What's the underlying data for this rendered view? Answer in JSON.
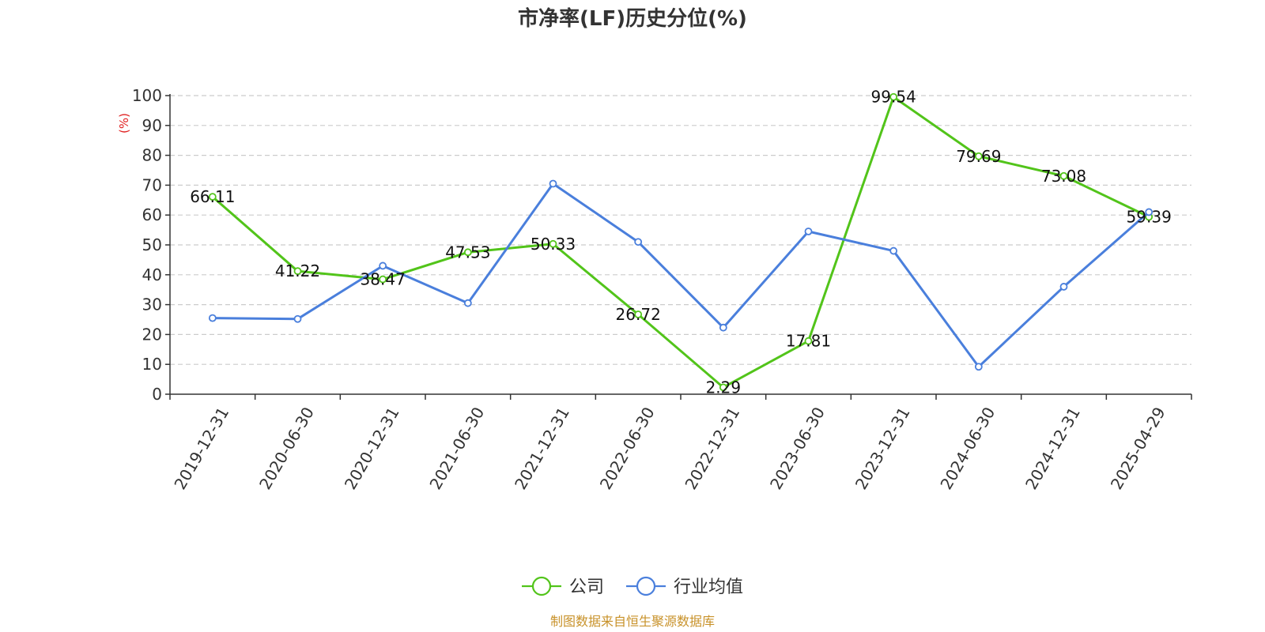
{
  "chart_data": {
    "type": "line",
    "title": "市净率(LF)历史分位(%)",
    "ylabel": "(%)",
    "ylim": [
      0,
      100
    ],
    "yticks": [
      "0",
      "10",
      "20",
      "30",
      "40",
      "50",
      "60",
      "70",
      "80",
      "90",
      "100"
    ],
    "categories": [
      "2019-12-31",
      "2020-06-30",
      "2020-12-31",
      "2021-06-30",
      "2021-12-31",
      "2022-06-30",
      "2022-12-31",
      "2023-06-30",
      "2023-12-31",
      "2024-06-30",
      "2024-12-31",
      "2025-04-29"
    ],
    "grid": true,
    "legend_position": "bottom-center",
    "series": [
      {
        "name": "公司",
        "color": "#52c41a",
        "values": [
          66.11,
          41.22,
          38.47,
          47.53,
          50.33,
          26.72,
          2.29,
          17.81,
          99.54,
          79.69,
          73.08,
          59.39
        ],
        "labels": [
          "66.11",
          "41.22",
          "38.47",
          "47.53",
          "50.33",
          "26.72",
          "2.29",
          "17.81",
          "99.54",
          "79.69",
          "73.08",
          "59.39"
        ]
      },
      {
        "name": "行业均值",
        "color": "#4a7fdc",
        "values": [
          25.5,
          25.2,
          43.0,
          30.5,
          70.5,
          51.0,
          22.3,
          54.5,
          48.0,
          9.2,
          36.0,
          61.0
        ]
      }
    ]
  },
  "source": {
    "text": "制图数据来自恒生聚源数据库",
    "color": "#c8922a"
  },
  "axis_color": "#333333",
  "grid_color": "#cccccc",
  "unit_color": "#e02020"
}
